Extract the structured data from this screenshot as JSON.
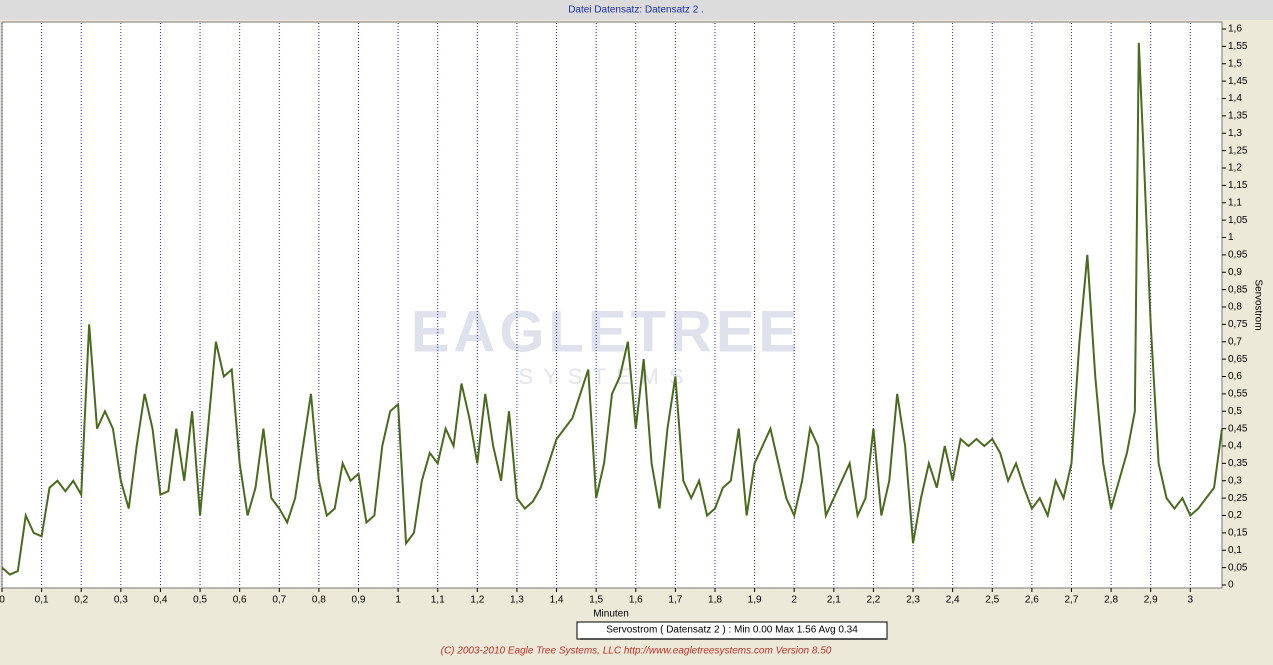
{
  "chart_data": {
    "type": "line",
    "title": "Datei   Datensatz: Datensatz 2 .",
    "x_label": "Minuten",
    "y_label": "Servostrom",
    "legend_text": "Servostrom ( Datensatz 2 ) : Min 0.00   Max 1.56   Avg 0.34",
    "footer": "(C) 2003-2010 Eagle Tree Systems, LLC     http://www.eagletreesystems.com     Version 8.50",
    "watermark": [
      "EAGLETREE",
      "SYSTEMS"
    ],
    "grid": true,
    "xlim": [
      0,
      3.08
    ],
    "ylim": [
      0,
      1.6
    ],
    "xticks": [
      0,
      {
        "value": 0.1,
        "label": "0,1"
      },
      {
        "value": 0.2,
        "label": "0,2"
      },
      {
        "value": 0.3,
        "label": "0,3"
      },
      {
        "value": 0.4,
        "label": "0,4"
      },
      {
        "value": 0.5,
        "label": "0,5"
      },
      {
        "value": 0.6,
        "label": "0,6"
      },
      {
        "value": 0.7,
        "label": "0,7"
      },
      {
        "value": 0.8,
        "label": "0,8"
      },
      {
        "value": 0.9,
        "label": "0,9"
      },
      1,
      {
        "value": 1.1,
        "label": "1,1"
      },
      {
        "value": 1.2,
        "label": "1,2"
      },
      {
        "value": 1.3,
        "label": "1,3"
      },
      {
        "value": 1.4,
        "label": "1,4"
      },
      {
        "value": 1.5,
        "label": "1,5"
      },
      {
        "value": 1.6,
        "label": "1,6"
      },
      {
        "value": 1.7,
        "label": "1,7"
      },
      {
        "value": 1.8,
        "label": "1,8"
      },
      {
        "value": 1.9,
        "label": "1,9"
      },
      2,
      {
        "value": 2.1,
        "label": "2,1"
      },
      {
        "value": 2.2,
        "label": "2,2"
      },
      {
        "value": 2.3,
        "label": "2,3"
      },
      {
        "value": 2.4,
        "label": "2,4"
      },
      {
        "value": 2.5,
        "label": "2,5"
      },
      {
        "value": 2.6,
        "label": "2,6"
      },
      {
        "value": 2.7,
        "label": "2,7"
      },
      {
        "value": 2.8,
        "label": "2,8"
      },
      {
        "value": 2.9,
        "label": "2,9"
      },
      3
    ],
    "yticks": [
      0,
      {
        "value": 0.05,
        "label": "0,05"
      },
      {
        "value": 0.1,
        "label": "0,1"
      },
      {
        "value": 0.15,
        "label": "0,15"
      },
      {
        "value": 0.2,
        "label": "0,2"
      },
      {
        "value": 0.25,
        "label": "0,25"
      },
      {
        "value": 0.3,
        "label": "0,3"
      },
      {
        "value": 0.35,
        "label": "0,35"
      },
      {
        "value": 0.4,
        "label": "0,4"
      },
      {
        "value": 0.45,
        "label": "0,45"
      },
      {
        "value": 0.5,
        "label": "0,5"
      },
      {
        "value": 0.55,
        "label": "0,55"
      },
      {
        "value": 0.6,
        "label": "0,6"
      },
      {
        "value": 0.65,
        "label": "0,65"
      },
      {
        "value": 0.7,
        "label": "0,7"
      },
      {
        "value": 0.75,
        "label": "0,75"
      },
      {
        "value": 0.8,
        "label": "0,8"
      },
      {
        "value": 0.85,
        "label": "0,85"
      },
      {
        "value": 0.9,
        "label": "0,9"
      },
      {
        "value": 0.95,
        "label": "0,95"
      },
      1,
      {
        "value": 1.05,
        "label": "1,05"
      },
      {
        "value": 1.1,
        "label": "1,1"
      },
      {
        "value": 1.15,
        "label": "1,15"
      },
      {
        "value": 1.2,
        "label": "1,2"
      },
      {
        "value": 1.25,
        "label": "1,25"
      },
      {
        "value": 1.3,
        "label": "1,3"
      },
      {
        "value": 1.35,
        "label": "1,35"
      },
      {
        "value": 1.4,
        "label": "1,4"
      },
      {
        "value": 1.45,
        "label": "1,45"
      },
      {
        "value": 1.5,
        "label": "1,5"
      },
      {
        "value": 1.55,
        "label": "1,55"
      },
      {
        "value": 1.6,
        "label": "1,6"
      }
    ],
    "x": [
      0,
      0.02,
      0.04,
      0.06,
      0.08,
      0.1,
      0.12,
      0.14,
      0.16,
      0.18,
      0.2,
      0.22,
      0.24,
      0.26,
      0.28,
      0.3,
      0.32,
      0.34,
      0.36,
      0.38,
      0.4,
      0.42,
      0.44,
      0.46,
      0.48,
      0.5,
      0.52,
      0.54,
      0.56,
      0.58,
      0.6,
      0.62,
      0.64,
      0.66,
      0.68,
      0.7,
      0.72,
      0.74,
      0.76,
      0.78,
      0.8,
      0.82,
      0.84,
      0.86,
      0.88,
      0.9,
      0.92,
      0.94,
      0.96,
      0.98,
      1,
      1.02,
      1.04,
      1.06,
      1.08,
      1.1,
      1.12,
      1.14,
      1.16,
      1.18,
      1.2,
      1.22,
      1.24,
      1.26,
      1.28,
      1.3,
      1.32,
      1.34,
      1.36,
      1.38,
      1.4,
      1.42,
      1.44,
      1.46,
      1.48,
      1.5,
      1.52,
      1.54,
      1.56,
      1.58,
      1.6,
      1.62,
      1.64,
      1.66,
      1.68,
      1.7,
      1.72,
      1.74,
      1.76,
      1.78,
      1.8,
      1.82,
      1.84,
      1.86,
      1.88,
      1.9,
      1.92,
      1.94,
      1.96,
      1.98,
      2,
      2.02,
      2.04,
      2.06,
      2.08,
      2.1,
      2.12,
      2.14,
      2.16,
      2.18,
      2.2,
      2.22,
      2.24,
      2.26,
      2.28,
      2.3,
      2.32,
      2.34,
      2.36,
      2.38,
      2.4,
      2.42,
      2.44,
      2.46,
      2.48,
      2.5,
      2.52,
      2.54,
      2.56,
      2.58,
      2.6,
      2.62,
      2.64,
      2.66,
      2.68,
      2.7,
      2.72,
      2.74,
      2.76,
      2.78,
      2.8,
      2.82,
      2.84,
      2.86,
      2.87,
      2.88,
      2.9,
      2.92,
      2.94,
      2.96,
      2.98,
      3,
      3.02,
      3.04,
      3.06,
      3.08
    ],
    "series": [
      {
        "name": "Servostrom",
        "color": "#4a6a1e",
        "values": [
          0.05,
          0.03,
          0.04,
          0.2,
          0.15,
          0.14,
          0.28,
          0.3,
          0.27,
          0.3,
          0.26,
          0.75,
          0.45,
          0.5,
          0.45,
          0.3,
          0.22,
          0.4,
          0.55,
          0.45,
          0.26,
          0.27,
          0.45,
          0.3,
          0.5,
          0.2,
          0.45,
          0.7,
          0.6,
          0.62,
          0.35,
          0.2,
          0.28,
          0.45,
          0.25,
          0.22,
          0.18,
          0.25,
          0.4,
          0.55,
          0.3,
          0.2,
          0.22,
          0.35,
          0.3,
          0.32,
          0.18,
          0.2,
          0.4,
          0.5,
          0.52,
          0.12,
          0.15,
          0.3,
          0.38,
          0.35,
          0.45,
          0.4,
          0.58,
          0.48,
          0.35,
          0.55,
          0.4,
          0.3,
          0.5,
          0.25,
          0.22,
          0.24,
          0.28,
          0.35,
          0.42,
          0.45,
          0.48,
          0.55,
          0.62,
          0.25,
          0.35,
          0.55,
          0.6,
          0.7,
          0.45,
          0.65,
          0.35,
          0.22,
          0.45,
          0.6,
          0.3,
          0.25,
          0.3,
          0.2,
          0.22,
          0.28,
          0.3,
          0.45,
          0.2,
          0.35,
          0.4,
          0.45,
          0.35,
          0.25,
          0.2,
          0.3,
          0.45,
          0.4,
          0.2,
          0.25,
          0.3,
          0.35,
          0.2,
          0.25,
          0.45,
          0.2,
          0.3,
          0.55,
          0.4,
          0.12,
          0.25,
          0.35,
          0.28,
          0.4,
          0.3,
          0.42,
          0.4,
          0.42,
          0.4,
          0.42,
          0.38,
          0.3,
          0.35,
          0.28,
          0.22,
          0.25,
          0.2,
          0.3,
          0.25,
          0.35,
          0.7,
          0.95,
          0.6,
          0.35,
          0.22,
          0.3,
          0.38,
          0.5,
          1.56,
          1.3,
          0.75,
          0.35,
          0.25,
          0.22,
          0.25,
          0.2,
          0.22,
          0.25,
          0.28,
          0.45
        ]
      }
    ]
  }
}
